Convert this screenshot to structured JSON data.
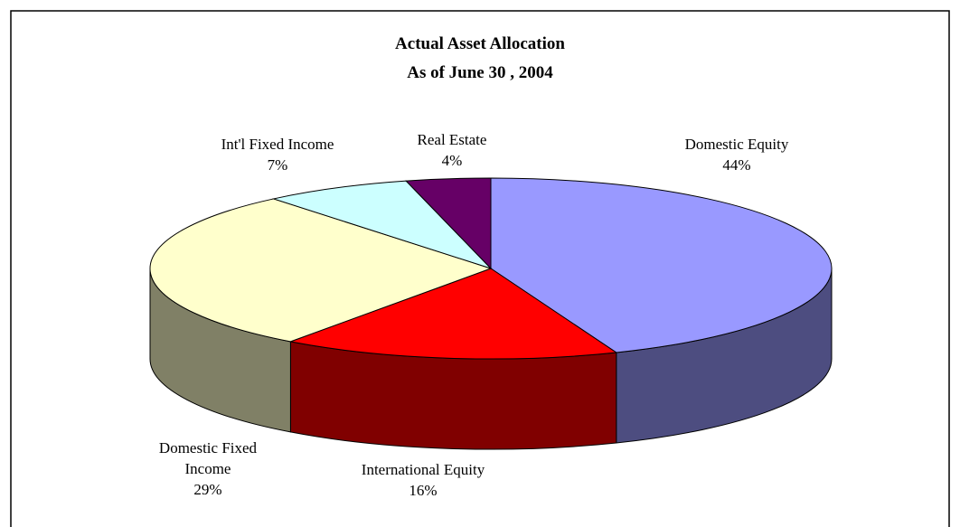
{
  "chart_data": {
    "type": "pie",
    "title": "Actual Asset Allocation",
    "subtitle": "As of June 30 , 2004",
    "categories": [
      "Domestic Equity",
      "International Equity",
      "Domestic Fixed Income",
      "Int'l Fixed Income",
      "Real Estate"
    ],
    "values": [
      44,
      16,
      29,
      7,
      4
    ],
    "value_labels": [
      "44%",
      "16%",
      "29%",
      "7%",
      "4%"
    ],
    "colors": [
      "#9999ff",
      "#ff0000",
      "#ffffcc",
      "#ccffff",
      "#660066"
    ]
  }
}
